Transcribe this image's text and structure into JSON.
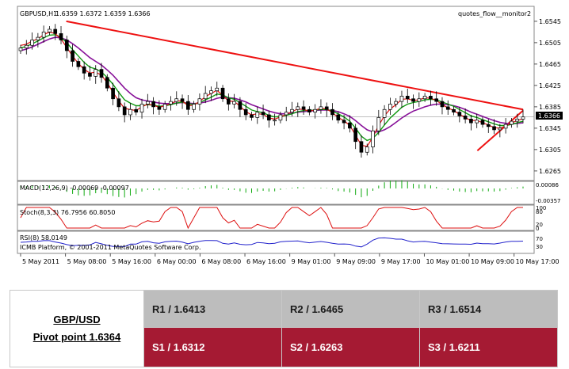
{
  "chart_data": {
    "type": "candlestick",
    "symbol_label": "GBPUSD,H1",
    "ohlc_header": "1.6359 1.6372 1.6359 1.6366",
    "indicator_name": "quotes_flow__monitor2",
    "current_price": "1.6366",
    "price_ticks": [
      "1.6545",
      "1.6505",
      "1.6465",
      "1.6425",
      "1.6385",
      "1.6345",
      "1.6305",
      "1.6265"
    ],
    "ylim": [
      1.625,
      1.657
    ],
    "x_labels": [
      "5 May 2011",
      "5 May 08:00",
      "5 May 16:00",
      "6 May 00:00",
      "6 May 08:00",
      "6 May 16:00",
      "9 May 01:00",
      "9 May 09:00",
      "9 May 17:00",
      "10 May 01:00",
      "10 May 09:00",
      "10 May 17:00"
    ],
    "closes": [
      1.6495,
      1.65,
      1.651,
      1.6515,
      1.6525,
      1.653,
      1.6522,
      1.651,
      1.649,
      1.647,
      1.646,
      1.6448,
      1.6442,
      1.6455,
      1.644,
      1.642,
      1.64,
      1.6385,
      1.637,
      1.638,
      1.6375,
      1.639,
      1.6395,
      1.6385,
      1.638,
      1.639,
      1.6395,
      1.64,
      1.6395,
      1.638,
      1.639,
      1.64,
      1.641,
      1.6415,
      1.642,
      1.64,
      1.639,
      1.6395,
      1.638,
      1.637,
      1.6365,
      1.6375,
      1.637,
      1.636,
      1.636,
      1.637,
      1.6375,
      1.638,
      1.6385,
      1.638,
      1.6375,
      1.638,
      1.6385,
      1.638,
      1.637,
      1.636,
      1.6355,
      1.6345,
      1.632,
      1.63,
      1.631,
      1.634,
      1.6365,
      1.638,
      1.639,
      1.6395,
      1.6405,
      1.64,
      1.6395,
      1.64,
      1.6405,
      1.64,
      1.6395,
      1.6385,
      1.638,
      1.6375,
      1.6368,
      1.6362,
      1.6355,
      1.636,
      1.6352,
      1.6348,
      1.6342,
      1.6345,
      1.6352,
      1.6358,
      1.6362,
      1.6366
    ],
    "ma_fast": [
      1.65,
      1.6502,
      1.6508,
      1.6512,
      1.652,
      1.6525,
      1.6522,
      1.6512,
      1.6496,
      1.648,
      1.6466,
      1.6455,
      1.6448,
      1.645,
      1.6444,
      1.643,
      1.6412,
      1.6396,
      1.6382,
      1.638,
      1.6378,
      1.6385,
      1.639,
      1.6388,
      1.6384,
      1.6387,
      1.6391,
      1.6396,
      1.6396,
      1.6387,
      1.6388,
      1.6395,
      1.6404,
      1.641,
      1.6416,
      1.6406,
      1.6396,
      1.6395,
      1.6386,
      1.6376,
      1.637,
      1.6372,
      1.6371,
      1.6364,
      1.6362,
      1.6366,
      1.6371,
      1.6376,
      1.6381,
      1.638,
      1.6377,
      1.6379,
      1.6382,
      1.6381,
      1.6374,
      1.6365,
      1.6359,
      1.635,
      1.6332,
      1.6313,
      1.6311,
      1.6328,
      1.635,
      1.6368,
      1.6381,
      1.6389,
      1.6399,
      1.64,
      1.6397,
      1.6398,
      1.6402,
      1.6401,
      1.6397,
      1.6389,
      1.6383,
      1.6378,
      1.6371,
      1.6365,
      1.6359,
      1.636,
      1.6355,
      1.6351,
      1.6346,
      1.6345,
      1.6349,
      1.6355,
      1.6359,
      1.6363
    ],
    "ma_mid": [
      1.6495,
      1.6498,
      1.6503,
      1.6508,
      1.6514,
      1.6519,
      1.652,
      1.6515,
      1.6505,
      1.6492,
      1.648,
      1.6468,
      1.6459,
      1.6456,
      1.645,
      1.644,
      1.6427,
      1.6412,
      1.6398,
      1.6392,
      1.6387,
      1.6387,
      1.6389,
      1.6388,
      1.6386,
      1.6387,
      1.6389,
      1.6392,
      1.6394,
      1.639,
      1.639,
      1.6393,
      1.6398,
      1.6403,
      1.6409,
      1.6407,
      1.6402,
      1.6399,
      1.6393,
      1.6386,
      1.6379,
      1.6376,
      1.6374,
      1.6369,
      1.6366,
      1.6367,
      1.6369,
      1.6372,
      1.6376,
      1.6378,
      1.6378,
      1.6379,
      1.638,
      1.638,
      1.6377,
      1.6372,
      1.6366,
      1.6358,
      1.6345,
      1.633,
      1.6322,
      1.6326,
      1.6337,
      1.6351,
      1.6364,
      1.6374,
      1.6384,
      1.639,
      1.6393,
      1.6395,
      1.6398,
      1.6399,
      1.6398,
      1.6394,
      1.639,
      1.6386,
      1.638,
      1.6374,
      1.6368,
      1.6365,
      1.6361,
      1.6357,
      1.6353,
      1.635,
      1.635,
      1.6352,
      1.6355,
      1.6358
    ],
    "ma_slow": [
      1.649,
      1.6493,
      1.6497,
      1.6502,
      1.6507,
      1.6512,
      1.6515,
      1.6514,
      1.651,
      1.6503,
      1.6495,
      1.6486,
      1.6477,
      1.647,
      1.6463,
      1.6454,
      1.6444,
      1.6432,
      1.642,
      1.641,
      1.6402,
      1.6398,
      1.6396,
      1.6394,
      1.6392,
      1.6391,
      1.6391,
      1.6392,
      1.6393,
      1.6392,
      1.6391,
      1.6392,
      1.6394,
      1.6397,
      1.6401,
      1.6403,
      1.6402,
      1.6401,
      1.6398,
      1.6394,
      1.6389,
      1.6385,
      1.6381,
      1.6377,
      1.6374,
      1.6372,
      1.6372,
      1.6373,
      1.6375,
      1.6376,
      1.6377,
      1.6378,
      1.6379,
      1.6379,
      1.6378,
      1.6376,
      1.6372,
      1.6367,
      1.6359,
      1.635,
      1.6342,
      1.6338,
      1.6338,
      1.6342,
      1.6348,
      1.6356,
      1.6364,
      1.6371,
      1.6377,
      1.6381,
      1.6385,
      1.6388,
      1.639,
      1.639,
      1.6389,
      1.6387,
      1.6384,
      1.638,
      1.6375,
      1.6371,
      1.6367,
      1.6363,
      1.6359,
      1.6356,
      1.6354,
      1.6353,
      1.6354,
      1.6355
    ],
    "trendlines": [
      {
        "from": [
          "5 May 08:00",
          1.6545
        ],
        "to": [
          "10 May 17:00",
          1.638
        ],
        "color": "#ee1111"
      },
      {
        "from": [
          "10 May 09:00",
          1.6303
        ],
        "to": [
          "10 May 17:00",
          1.6378
        ],
        "color": "#ee1111"
      }
    ],
    "macd": {
      "label": "MACD(12,26,9) -0.00069 -0.00097",
      "ticks": [
        "0.00086",
        "-0.00357"
      ]
    },
    "stoch": {
      "label": "Stoch(8,3,3) 76.7956 60.8050",
      "ticks": [
        "100",
        "80",
        "20",
        "0"
      ]
    },
    "rsi": {
      "label": "RSI(8) 58.0149",
      "ticks": [
        "70",
        "30"
      ]
    },
    "copyright": "ICMB Platform, © 2001-2011 MetaQuotes Software Corp.",
    "colors": {
      "bg": "#ffffff",
      "candle": "#000000",
      "ma_fast": "#dd1111",
      "ma_mid": "#119911",
      "ma_slow": "#881199",
      "trend": "#ee1111",
      "rsi": "#2222cc",
      "macd_bar": "#11aa11",
      "macd_signal": "#dd1111"
    }
  },
  "pivot": {
    "pair": "GBP/USD",
    "pivot_point": "Pivot point 1.6364",
    "r1": "R1 / 1.6413",
    "r2": "R2 / 1.6465",
    "r3": "R3 / 1.6514",
    "s1": "S1 / 1.6312",
    "s2": "S2 / 1.6263",
    "s3": "S3 / 1.6211"
  }
}
